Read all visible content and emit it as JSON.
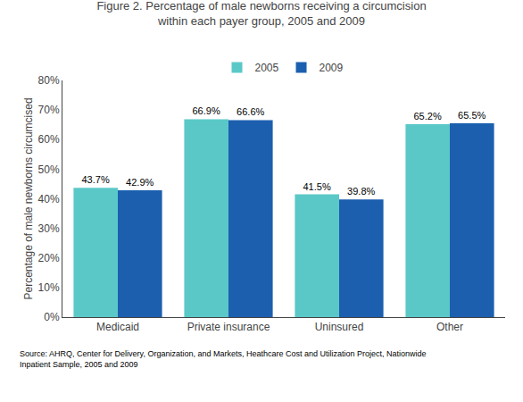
{
  "chart_data": {
    "type": "bar",
    "title": "Figure 2. Percentage of male newborns receiving a circumcision\nwithin each payer group, 2005 and 2009",
    "ylabel": "Percentage of male newborns circumcised",
    "categories": [
      "Medicaid",
      "Private insurance",
      "Uninsured",
      "Other"
    ],
    "series": [
      {
        "name": "2005",
        "color": "#5BC8C8",
        "values": [
          43.7,
          66.9,
          41.5,
          65.2
        ],
        "value_labels": [
          "43.7%",
          "66.9%",
          "41.5%",
          "65.2%"
        ]
      },
      {
        "name": "2009",
        "color": "#1C5FAF",
        "values": [
          42.9,
          66.6,
          39.8,
          65.5
        ],
        "value_labels": [
          "42.9%",
          "66.6%",
          "39.8%",
          "65.5%"
        ]
      }
    ],
    "ylim": [
      0,
      80
    ],
    "yticks": [
      {
        "value": 0,
        "label": "0%"
      },
      {
        "value": 10,
        "label": "10%"
      },
      {
        "value": 20,
        "label": "20%"
      },
      {
        "value": 30,
        "label": "30%"
      },
      {
        "value": 40,
        "label": "40%"
      },
      {
        "value": 50,
        "label": "50%"
      },
      {
        "value": 60,
        "label": "60%"
      },
      {
        "value": 70,
        "label": "70%"
      },
      {
        "value": 80,
        "label": "80%"
      }
    ],
    "grid": false,
    "legend": "top",
    "data_labels": true,
    "annotations": [
      "Source: AHRQ, Center for Delivery, Organization, and Markets, Heathcare Cost and Utilization Project, Nationwide\nInpatient Sample, 2005 and 2009"
    ]
  }
}
